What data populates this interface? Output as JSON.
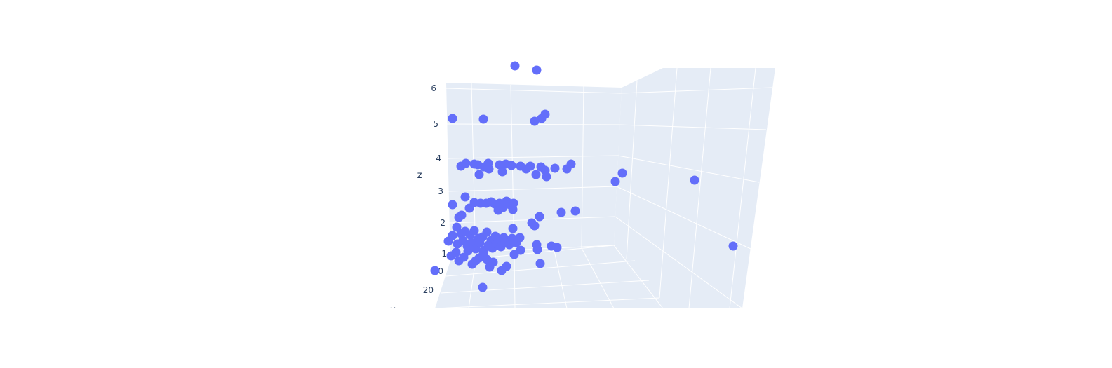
{
  "colors": {
    "background": "#ffffff",
    "scene_bg": "#e5ecf6",
    "grid": "#ffffff",
    "marker": "#636efa",
    "text": "#2a3f5f"
  },
  "chart_data": {
    "type": "scatter",
    "dimensions": 3,
    "axis_titles": {
      "z": "z",
      "x": "x"
    },
    "z_ticks": [
      "6",
      "5",
      "4",
      "3",
      "2",
      "1",
      "0"
    ],
    "x_tick_visible": "20",
    "grid": true,
    "legend": "none",
    "marker_symbol": "circle"
  }
}
